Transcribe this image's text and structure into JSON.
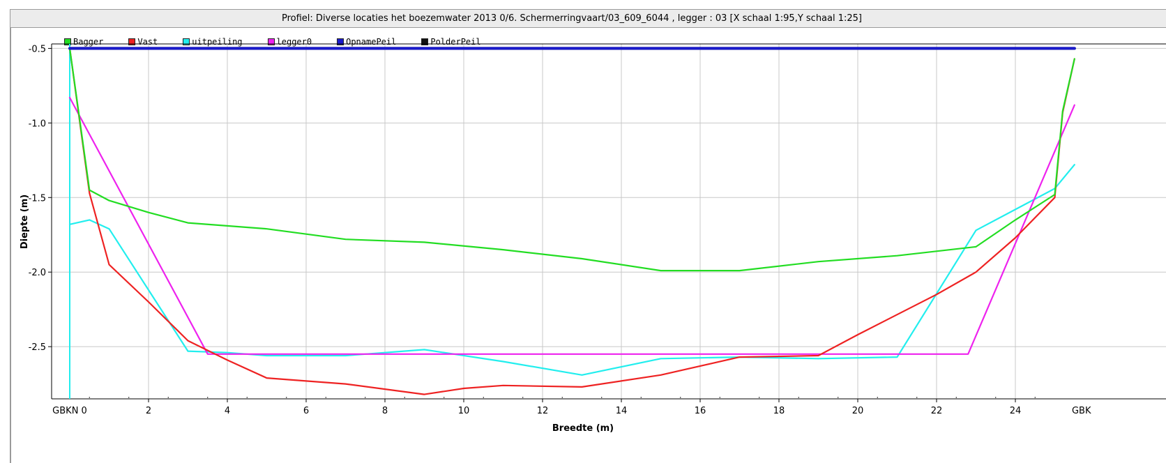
{
  "window": {
    "title": "Profiel: Diverse locaties het boezemwater 2013 0/6. Schermerringvaart/03_609_6044 , legger : 03   [X schaal 1:95,Y schaal 1:25]"
  },
  "chart_data": {
    "type": "line",
    "title": "Profiel: Diverse locaties het boezemwater 2013 0/6. Schermerringvaart/03_609_6044 , legger : 03   [X schaal 1:95,Y schaal 1:25]",
    "xlabel": "Breedte (m)",
    "ylabel": "Diepte (m)",
    "xlim": [
      -1.0,
      25.5
    ],
    "ylim": [
      -2.85,
      -0.47
    ],
    "grid": true,
    "legend_position": "top-left",
    "x_ticks": [
      2,
      4,
      6,
      8,
      10,
      12,
      14,
      16,
      18,
      20,
      22,
      24
    ],
    "y_ticks": [
      -0.5,
      -1.0,
      -1.5,
      -2.0,
      -2.5
    ],
    "x_special_labels": [
      {
        "x": 0,
        "label": "GBKN 0",
        "color": "#00c8c8"
      },
      {
        "x": 25.5,
        "label": "GBK",
        "color": "#00c8c8"
      }
    ],
    "series": [
      {
        "name": "Bagger",
        "color": "#22dd22",
        "x": [
          0,
          0.5,
          1,
          2,
          3,
          5,
          7,
          9,
          11,
          13,
          15,
          17,
          19,
          21,
          23,
          24,
          25,
          25.2,
          25.5
        ],
        "y": [
          -0.5,
          -1.45,
          -1.52,
          -1.6,
          -1.67,
          -1.71,
          -1.78,
          -1.8,
          -1.85,
          -1.91,
          -1.99,
          -1.99,
          -1.93,
          -1.89,
          -1.83,
          -1.65,
          -1.48,
          -0.92,
          -0.57
        ]
      },
      {
        "name": "Vast",
        "color": "#ee2222",
        "x": [
          0,
          0.5,
          1,
          2,
          3,
          4,
          5,
          7,
          9,
          10,
          11,
          13,
          15,
          17,
          19,
          20,
          22,
          23,
          24,
          25,
          25.2,
          25.5
        ],
        "y": [
          -0.5,
          -1.47,
          -1.95,
          -2.2,
          -2.46,
          -2.59,
          -2.71,
          -2.75,
          -2.82,
          -2.78,
          -2.76,
          -2.77,
          -2.69,
          -2.57,
          -2.56,
          -2.42,
          -2.15,
          -2.0,
          -1.77,
          -1.5,
          -0.93,
          -0.57
        ]
      },
      {
        "name": "uitpeiling",
        "color": "#22eeee",
        "x": [
          0,
          0.5,
          1,
          2,
          3,
          4,
          5,
          7,
          9,
          11,
          13,
          15,
          17,
          19,
          21,
          23,
          24,
          25,
          25.5
        ],
        "y": [
          -1.68,
          -1.65,
          -1.71,
          -2.12,
          -2.53,
          -2.54,
          -2.56,
          -2.56,
          -2.52,
          -2.6,
          -2.69,
          -2.58,
          -2.57,
          -2.58,
          -2.57,
          -1.72,
          -1.58,
          -1.44,
          -1.28
        ]
      },
      {
        "name": "legger0",
        "color": "#ee22ee",
        "x": [
          0,
          3.5,
          22.8,
          25.5
        ],
        "y": [
          -0.83,
          -2.55,
          -2.55,
          -0.88
        ]
      },
      {
        "name": "OpnamePeil",
        "color": "#1a1acc",
        "x": [
          0,
          25.5
        ],
        "y": [
          -0.5,
          -0.5
        ]
      },
      {
        "name": "PolderPeil",
        "color": "#111111",
        "x": [
          0,
          25.5
        ],
        "y": [
          -0.5,
          -0.5
        ]
      }
    ]
  }
}
